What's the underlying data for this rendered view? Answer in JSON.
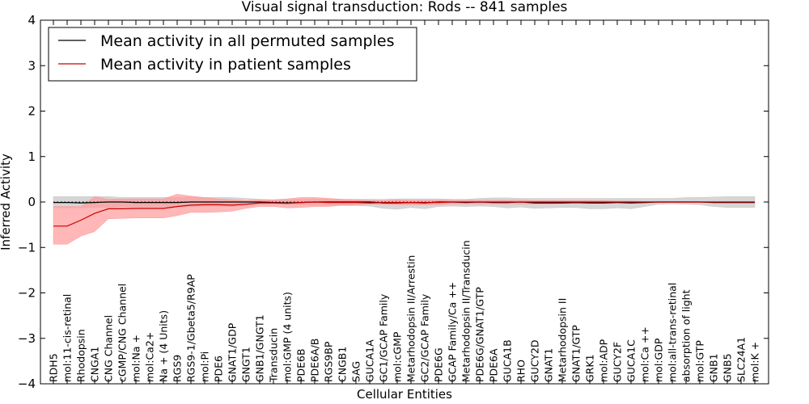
{
  "chart_data": {
    "type": "line",
    "title": "Visual signal transduction: Rods -- 841 samples",
    "xlabel": "Cellular Entities",
    "ylabel": "Inferred Activity",
    "ylim": [
      -4,
      4
    ],
    "yticks": [
      -4,
      -3,
      -2,
      -1,
      0,
      1,
      2,
      3,
      4
    ],
    "legend_position": "top-left",
    "categories": [
      "RDH5",
      "mol:11-cis-retinal",
      "Rhodopsin",
      "CNGA1",
      "CNG Channel",
      "cGMP/CNG Channel",
      "mol:Na +",
      "mol:Ca2+",
      "Na + (4 Units)",
      "RGS9",
      "RGS9-1/Gbeta5/R9AP",
      "mol:Pi",
      "PDE6",
      "GNAT1/GDP",
      "GNGT1",
      "GNB1/GNGT1",
      "Transducin",
      "mol:GMP (4 units)",
      "PDE6B",
      "PDE6A/B",
      "RGS9BP",
      "CNGB1",
      "SAG",
      "GUCA1A",
      "GC1/GCAP Family",
      "mol:cGMP",
      "Metarhodopsin II/Arrestin",
      "GC2/GCAP Family",
      "PDE6G",
      "GCAP Family/Ca ++",
      "Metarhodopsin II/Transducin",
      "PDE6G/GNAT1/GTP",
      "PDE6A",
      "GUCA1B",
      "RHO",
      "GUCY2D",
      "GNAT1",
      "Metarhodopsin II",
      "GNAT1/GTP",
      "GRK1",
      "mol:ADP",
      "GUCY2F",
      "GUCA1C",
      "mol:Ca ++",
      "mol:GDP",
      "mol:all-trans-retinal",
      "absorption of light",
      "mol:GTP",
      "GNB1",
      "GNB5",
      "SLC24A1",
      "mol:K +"
    ],
    "series": [
      {
        "name": "Mean activity in all permuted samples",
        "color": "#000000",
        "band_color": "#c8c8c8",
        "values": [
          -0.01,
          -0.01,
          -0.02,
          -0.01,
          0.0,
          0.0,
          -0.01,
          -0.01,
          -0.01,
          -0.01,
          0.0,
          0.0,
          0.0,
          0.0,
          0.0,
          0.0,
          -0.01,
          -0.02,
          -0.01,
          0.0,
          0.0,
          0.0,
          0.0,
          0.0,
          -0.02,
          -0.02,
          -0.01,
          -0.02,
          0.0,
          0.0,
          -0.01,
          0.0,
          -0.01,
          -0.01,
          0.0,
          -0.02,
          -0.02,
          -0.02,
          -0.01,
          -0.02,
          -0.02,
          -0.01,
          -0.02,
          -0.01,
          0.0,
          0.0,
          0.0,
          0.0,
          -0.01,
          -0.01,
          -0.01,
          -0.01
        ],
        "upper": [
          0.12,
          0.12,
          0.12,
          0.12,
          0.12,
          0.1,
          0.1,
          0.1,
          0.1,
          0.1,
          0.11,
          0.1,
          0.1,
          0.1,
          0.08,
          0.06,
          0.05,
          0.05,
          0.06,
          0.07,
          0.06,
          0.06,
          0.06,
          0.06,
          0.06,
          0.07,
          0.07,
          0.07,
          0.07,
          0.06,
          0.06,
          0.08,
          0.09,
          0.09,
          0.08,
          0.08,
          0.08,
          0.08,
          0.08,
          0.08,
          0.08,
          0.08,
          0.08,
          0.08,
          0.08,
          0.08,
          0.1,
          0.1,
          0.11,
          0.12,
          0.12,
          0.12
        ],
        "lower": [
          -0.13,
          -0.13,
          -0.13,
          -0.12,
          -0.12,
          -0.1,
          -0.1,
          -0.1,
          -0.1,
          -0.1,
          -0.11,
          -0.1,
          -0.1,
          -0.1,
          -0.08,
          -0.06,
          -0.05,
          -0.05,
          -0.06,
          -0.07,
          -0.07,
          -0.08,
          -0.08,
          -0.09,
          -0.14,
          -0.16,
          -0.12,
          -0.15,
          -0.1,
          -0.09,
          -0.1,
          -0.09,
          -0.1,
          -0.13,
          -0.11,
          -0.14,
          -0.13,
          -0.12,
          -0.12,
          -0.15,
          -0.15,
          -0.13,
          -0.15,
          -0.1,
          -0.05,
          -0.04,
          -0.05,
          -0.06,
          -0.1,
          -0.12,
          -0.12,
          -0.12
        ]
      },
      {
        "name": "Mean activity in patient samples",
        "color": "#cc0000",
        "band_color": "#ff9999",
        "values": [
          -0.53,
          -0.53,
          -0.4,
          -0.25,
          -0.15,
          -0.15,
          -0.14,
          -0.14,
          -0.14,
          -0.1,
          -0.07,
          -0.06,
          -0.06,
          -0.07,
          -0.05,
          -0.02,
          -0.02,
          -0.03,
          -0.01,
          0.0,
          -0.01,
          -0.01,
          -0.01,
          -0.02,
          -0.01,
          -0.01,
          -0.01,
          -0.01,
          -0.01,
          0.0,
          0.0,
          0.0,
          0.0,
          0.0,
          0.0,
          0.0,
          0.0,
          0.0,
          0.0,
          0.0,
          0.0,
          0.0,
          0.0,
          0.0,
          0.0,
          0.0,
          0.0,
          0.0,
          0.0,
          0.0,
          0.0,
          0.0
        ],
        "upper": [
          -0.1,
          -0.1,
          -0.1,
          0.12,
          0.06,
          0.07,
          0.07,
          0.07,
          0.07,
          0.17,
          0.13,
          0.1,
          0.07,
          0.05,
          0.03,
          0.05,
          0.05,
          0.07,
          0.1,
          0.1,
          0.08,
          0.06,
          0.05,
          0.04,
          0.03,
          0.05,
          0.04,
          0.04,
          0.04,
          0.04,
          0.04,
          0.04,
          0.04,
          0.04,
          0.04,
          0.03,
          0.03,
          0.03,
          0.03,
          0.03,
          0.03,
          0.02,
          0.02,
          0.01,
          0.01,
          0.01,
          0.01,
          0.01,
          0.01,
          0.01,
          0.01,
          0.01
        ],
        "lower": [
          -0.93,
          -0.93,
          -0.75,
          -0.65,
          -0.37,
          -0.36,
          -0.35,
          -0.35,
          -0.35,
          -0.3,
          -0.23,
          -0.23,
          -0.22,
          -0.2,
          -0.14,
          -0.1,
          -0.1,
          -0.13,
          -0.12,
          -0.1,
          -0.1,
          -0.07,
          -0.06,
          -0.05,
          -0.05,
          -0.06,
          -0.06,
          -0.06,
          -0.06,
          -0.04,
          -0.04,
          -0.04,
          -0.04,
          -0.04,
          -0.04,
          -0.04,
          -0.04,
          -0.03,
          -0.03,
          -0.03,
          -0.03,
          -0.02,
          -0.02,
          -0.02,
          -0.01,
          -0.01,
          -0.01,
          -0.01,
          -0.01,
          -0.01,
          -0.01,
          -0.01
        ]
      }
    ],
    "reference_line": {
      "y": 0,
      "style": "dotted"
    }
  }
}
